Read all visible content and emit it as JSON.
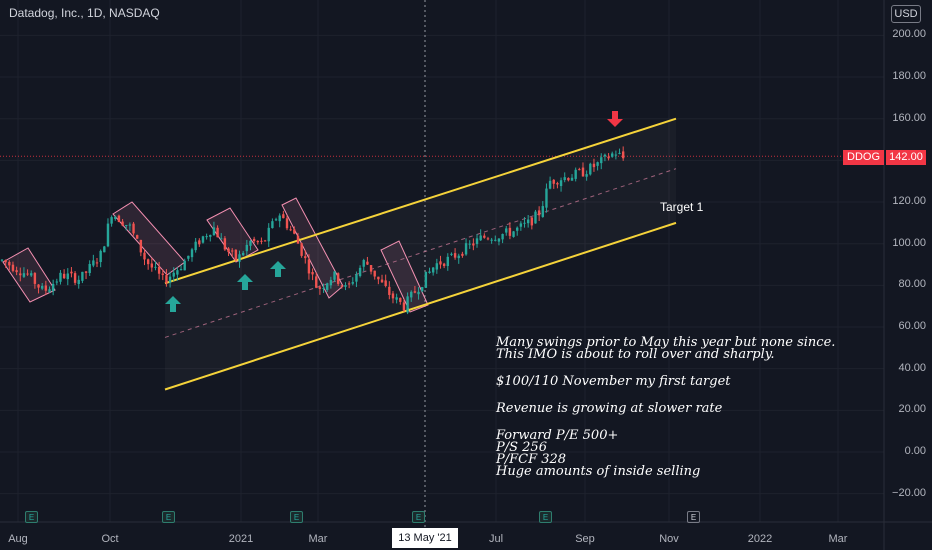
{
  "header": {
    "title": "Datadog, Inc., 1D, NASDAQ",
    "currency": "USD"
  },
  "notes": [
    "Many swings prior to May this year but none since.",
    "This IMO is about to roll over and sharply.",
    "$100/110 November my first target",
    "Revenue is growing at slower rate",
    "Forward P/E 500+",
    "P/S 256",
    "P/FCF 328",
    "Huge amounts of inside selling"
  ],
  "target_label": "Target 1",
  "ticker_tag": "DDOG",
  "last_price": "142.00",
  "cursor_date": "13 May '21",
  "earnings_marker": "E",
  "colors": {
    "up": "#26a69a",
    "down": "#ef5350",
    "channel": "#f5d33a",
    "box": "#f48fb1",
    "arrow_up": "#26a69a",
    "arrow_down": "#f23645"
  },
  "chart_data": {
    "type": "candlestick",
    "symbol": "DDOG",
    "timeframe": "1D",
    "exchange": "NASDAQ",
    "y_ticks": [
      -20,
      0,
      20,
      40,
      60,
      80,
      100,
      120,
      140,
      160,
      180,
      200
    ],
    "y_tick_labels": [
      "−20.00",
      "0.00",
      "20.00",
      "40.00",
      "60.00",
      "80.00",
      "100.00",
      "120.00",
      "",
      "160.00",
      "180.00",
      "200.00"
    ],
    "ylim": [
      -25,
      210
    ],
    "x_tick_labels": [
      "Aug",
      "Oct",
      "2021",
      "Mar",
      "Jul",
      "Sep",
      "Nov",
      "2022",
      "Mar"
    ],
    "price_path": [
      [
        0,
        92
      ],
      [
        1.0,
        85
      ],
      [
        1.6,
        77
      ],
      [
        2.3,
        85
      ],
      [
        3.0,
        83
      ],
      [
        3.8,
        95
      ],
      [
        4.2,
        115
      ],
      [
        4.9,
        108
      ],
      [
        5.5,
        92
      ],
      [
        6.2,
        82
      ],
      [
        6.9,
        90
      ],
      [
        7.6,
        102
      ],
      [
        8.1,
        108
      ],
      [
        8.6,
        97
      ],
      [
        9.0,
        92
      ],
      [
        9.5,
        101
      ],
      [
        10.0,
        100
      ],
      [
        10.6,
        115
      ],
      [
        11.2,
        104
      ],
      [
        11.7,
        90
      ],
      [
        12.1,
        78
      ],
      [
        12.7,
        85
      ],
      [
        13.2,
        78
      ],
      [
        13.9,
        92
      ],
      [
        14.4,
        83
      ],
      [
        14.9,
        75
      ],
      [
        15.4,
        70
      ],
      [
        16.0,
        80
      ],
      [
        16.6,
        90
      ],
      [
        17.2,
        93
      ],
      [
        17.8,
        98
      ],
      [
        18.4,
        103
      ],
      [
        19.0,
        104
      ],
      [
        19.6,
        106
      ],
      [
        20.2,
        110
      ],
      [
        20.6,
        115
      ],
      [
        21.0,
        130
      ],
      [
        21.6,
        132
      ],
      [
        22.2,
        134
      ],
      [
        22.8,
        138
      ],
      [
        23.5,
        144
      ],
      [
        23.9,
        140
      ]
    ],
    "channel": {
      "upper": [
        [
          "Nov 2020",
          81
        ],
        [
          "Nov 2021",
          160
        ]
      ],
      "lower": [
        [
          "Nov 2020",
          30
        ],
        [
          "Nov 2021",
          110
        ]
      ],
      "midline": [
        [
          "Nov 2020",
          55
        ],
        [
          "Nov 2021",
          136
        ]
      ]
    },
    "current_price": 142.0,
    "annotations": [
      "Target 1"
    ]
  }
}
